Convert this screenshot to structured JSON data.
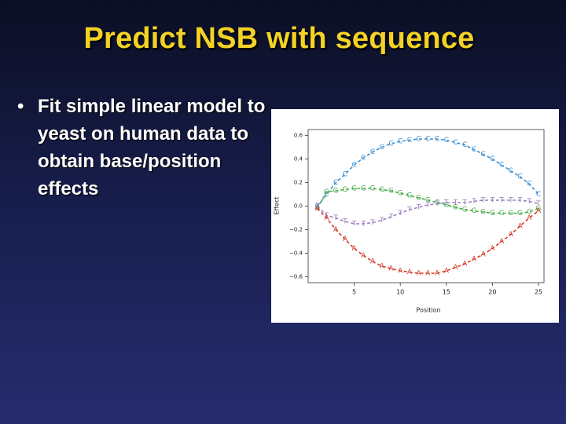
{
  "slide": {
    "title": "Predict NSB with sequence",
    "bullet": "Fit simple linear model to yeast on human data to obtain base/position effects"
  },
  "chart_data": {
    "type": "line",
    "xlabel": "Position",
    "ylabel": "Effect",
    "x": [
      1,
      2,
      3,
      4,
      5,
      6,
      7,
      8,
      9,
      10,
      11,
      12,
      13,
      14,
      15,
      16,
      17,
      18,
      19,
      20,
      21,
      22,
      23,
      24,
      25
    ],
    "series": [
      {
        "name": "C",
        "color": "#3a8fd0",
        "values": [
          0.0,
          0.1,
          0.2,
          0.27,
          0.35,
          0.41,
          0.46,
          0.5,
          0.53,
          0.55,
          0.56,
          0.57,
          0.57,
          0.57,
          0.56,
          0.54,
          0.52,
          0.48,
          0.44,
          0.4,
          0.35,
          0.3,
          0.25,
          0.19,
          0.1
        ]
      },
      {
        "name": "G",
        "color": "#4cae4c",
        "values": [
          -0.02,
          0.12,
          0.13,
          0.14,
          0.15,
          0.15,
          0.15,
          0.14,
          0.13,
          0.11,
          0.09,
          0.07,
          0.05,
          0.03,
          0.01,
          -0.01,
          -0.03,
          -0.04,
          -0.05,
          -0.06,
          -0.06,
          -0.06,
          -0.06,
          -0.05,
          -0.02
        ]
      },
      {
        "name": "T",
        "color": "#9a7fbf",
        "values": [
          0.0,
          -0.08,
          -0.1,
          -0.13,
          -0.15,
          -0.15,
          -0.14,
          -0.12,
          -0.09,
          -0.06,
          -0.03,
          -0.01,
          0.01,
          0.02,
          0.03,
          0.03,
          0.03,
          0.04,
          0.05,
          0.05,
          0.05,
          0.05,
          0.05,
          0.04,
          0.02
        ]
      },
      {
        "name": "A",
        "color": "#d63a2a",
        "values": [
          -0.02,
          -0.1,
          -0.2,
          -0.28,
          -0.36,
          -0.42,
          -0.47,
          -0.51,
          -0.53,
          -0.55,
          -0.56,
          -0.57,
          -0.57,
          -0.57,
          -0.55,
          -0.52,
          -0.49,
          -0.45,
          -0.41,
          -0.36,
          -0.3,
          -0.24,
          -0.17,
          -0.1,
          -0.04
        ]
      }
    ],
    "xlim": [
      0,
      25.6
    ],
    "xticks": [
      5,
      10,
      15,
      20,
      25
    ],
    "ylim": [
      -0.65,
      0.65
    ],
    "yticks": [
      {
        "value": -0.6,
        "label": "−0.6"
      },
      {
        "value": -0.4,
        "label": "−0.4"
      },
      {
        "value": -0.2,
        "label": "−0.2"
      },
      {
        "value": 0,
        "label": "0.0"
      },
      0.2,
      0.4,
      0.6
    ]
  }
}
